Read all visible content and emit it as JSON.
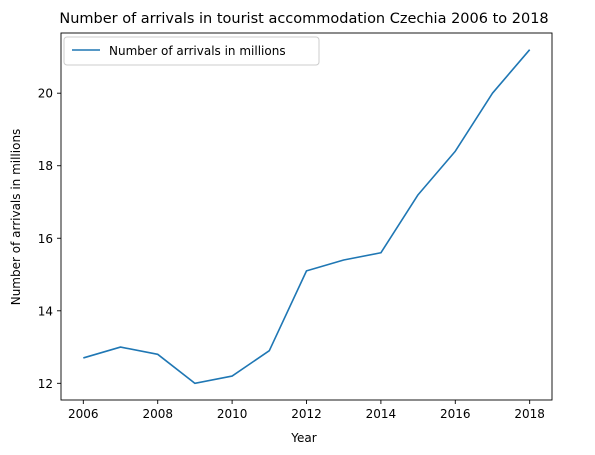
{
  "chart_data": {
    "type": "line",
    "title": "Number of arrivals in tourist accommodation Czechia 2006 to 2018",
    "xlabel": "Year",
    "ylabel": "Number of arrivals in millions",
    "x": [
      2006,
      2007,
      2008,
      2009,
      2010,
      2011,
      2012,
      2013,
      2014,
      2015,
      2016,
      2017,
      2018
    ],
    "series": [
      {
        "name": "Number of arrivals in millions",
        "color": "#1f77b4",
        "values": [
          12.7,
          13.0,
          12.8,
          12.0,
          12.2,
          12.9,
          15.1,
          15.4,
          15.6,
          17.2,
          18.4,
          20.0,
          21.2
        ]
      }
    ],
    "xlim": [
      2005.4,
      2018.6
    ],
    "ylim": [
      11.54,
      21.66
    ],
    "xticks": [
      "2006",
      "2008",
      "2010",
      "2012",
      "2014",
      "2016",
      "2018"
    ],
    "yticks": [
      "12",
      "14",
      "16",
      "18",
      "20"
    ],
    "grid": false,
    "legend_position": "top-left"
  }
}
